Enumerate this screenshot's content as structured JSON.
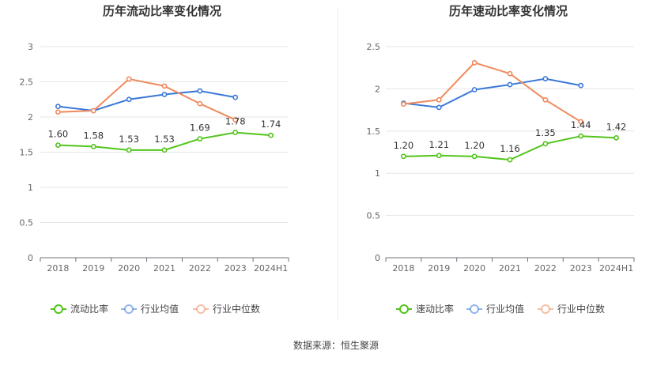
{
  "source": "数据来源：恒生聚源",
  "chart_data": [
    {
      "type": "line",
      "title": "历年流动比率变化情况",
      "categories": [
        "2018",
        "2019",
        "2020",
        "2021",
        "2022",
        "2023",
        "2024H1"
      ],
      "yticks": [
        "0",
        "0.5",
        "1",
        "1.5",
        "2",
        "2.5",
        "3"
      ],
      "ylim": [
        0,
        3
      ],
      "grid": true,
      "legend_position": "bottom",
      "series": [
        {
          "name": "流动比率",
          "color": "#52c41a",
          "values": [
            1.6,
            1.58,
            1.53,
            1.53,
            1.69,
            1.78,
            1.74
          ],
          "labels": [
            "1.60",
            "1.58",
            "1.53",
            "1.53",
            "1.69",
            "1.78",
            "1.74"
          ]
        },
        {
          "name": "行业均值",
          "color": "#3a78d8",
          "values": [
            2.15,
            2.09,
            2.25,
            2.32,
            2.37,
            2.28,
            null
          ]
        },
        {
          "name": "行业中位数",
          "color": "#f08a5d",
          "values": [
            2.07,
            2.09,
            2.54,
            2.44,
            2.19,
            1.96,
            null
          ]
        }
      ]
    },
    {
      "type": "line",
      "title": "历年速动比率变化情况",
      "categories": [
        "2018",
        "2019",
        "2020",
        "2021",
        "2022",
        "2023",
        "2024H1"
      ],
      "yticks": [
        "0",
        "0.5",
        "1",
        "1.5",
        "2",
        "2.5"
      ],
      "ylim": [
        0,
        2.5
      ],
      "grid": true,
      "legend_position": "bottom",
      "series": [
        {
          "name": "速动比率",
          "color": "#52c41a",
          "values": [
            1.2,
            1.21,
            1.2,
            1.16,
            1.35,
            1.44,
            1.42
          ],
          "labels": [
            "1.20",
            "1.21",
            "1.20",
            "1.16",
            "1.35",
            "1.44",
            "1.42"
          ]
        },
        {
          "name": "行业均值",
          "color": "#3a78d8",
          "values": [
            1.83,
            1.78,
            1.99,
            2.05,
            2.12,
            2.04,
            null
          ]
        },
        {
          "name": "行业中位数",
          "color": "#f08a5d",
          "values": [
            1.82,
            1.87,
            2.31,
            2.18,
            1.87,
            1.61,
            null
          ]
        }
      ]
    }
  ]
}
